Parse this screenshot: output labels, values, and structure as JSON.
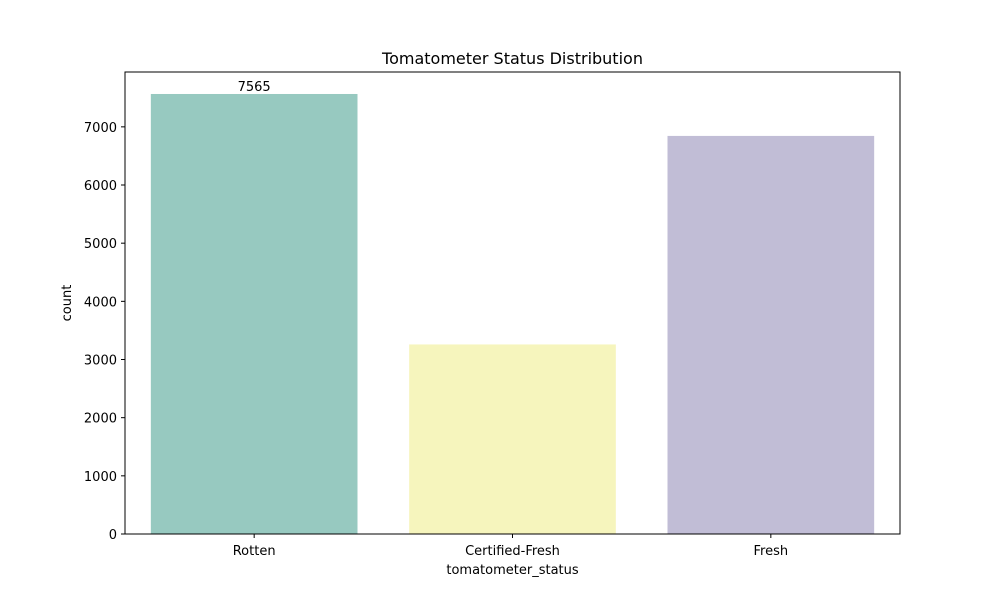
{
  "chart_data": {
    "type": "bar",
    "title": "Tomatometer Status Distribution",
    "xlabel": "tomatometer_status",
    "ylabel": "count",
    "categories": [
      "Rotten",
      "Certified-Fresh",
      "Fresh"
    ],
    "values": [
      7565,
      3259,
      6844
    ],
    "colors": [
      "#97c9c0",
      "#f6f5bd",
      "#c1bdd6"
    ],
    "data_labels": [
      "7565",
      "",
      ""
    ],
    "ylim": [
      0,
      7943
    ],
    "yticks": [
      0,
      1000,
      2000,
      3000,
      4000,
      5000,
      6000,
      7000
    ],
    "grid": false,
    "legend": "none"
  }
}
